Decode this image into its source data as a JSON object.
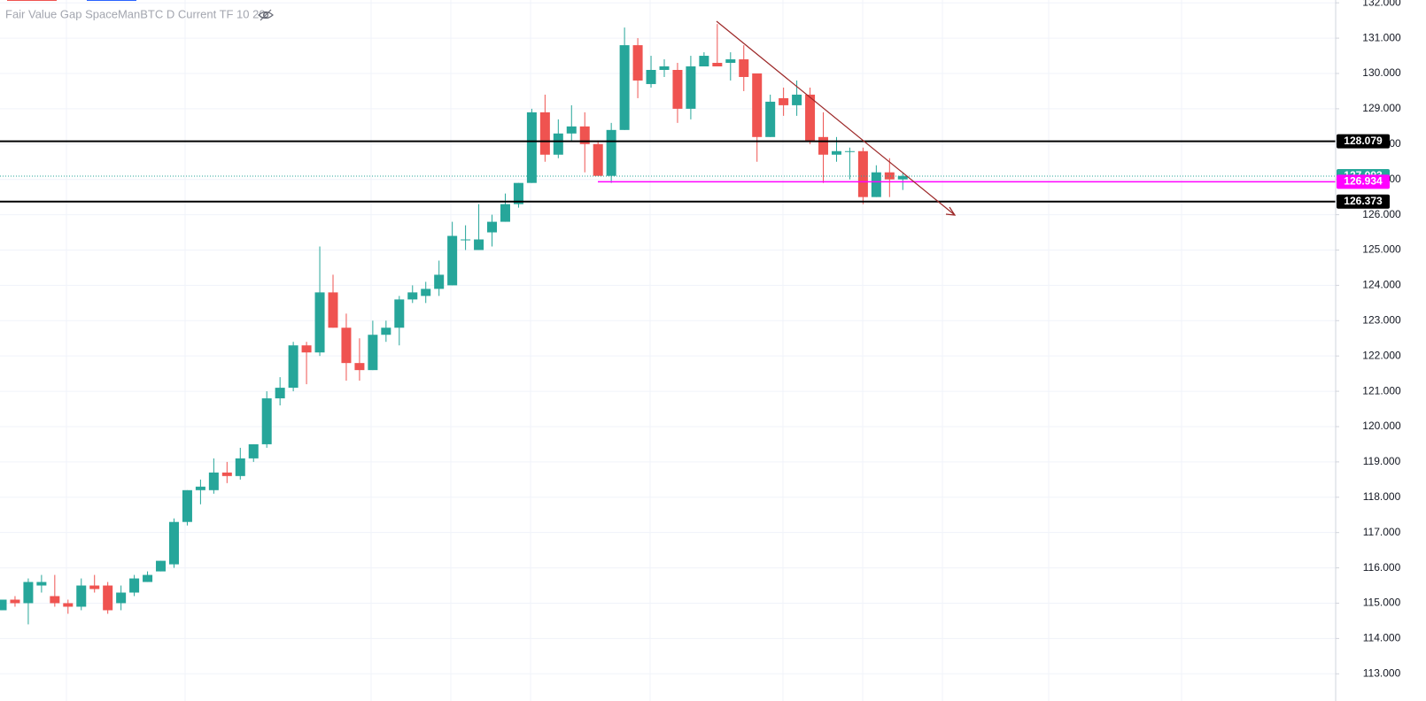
{
  "chart_data": {
    "type": "candlestick",
    "title": "Fair Value Gap SpaceManBTC D Current TF 10 20",
    "up_color": "#26a69a",
    "down_color": "#ef5350",
    "open": [
      114.8,
      115.1,
      115.0,
      115.5,
      115.2,
      115.0,
      114.9,
      115.5,
      115.5,
      115.0,
      115.3,
      115.6,
      115.9,
      116.1,
      117.3,
      118.2,
      118.2,
      118.7,
      118.6,
      119.1,
      119.5,
      120.8,
      121.1,
      122.3,
      122.1,
      123.8,
      122.8,
      121.8,
      121.6,
      122.6,
      122.8,
      123.6,
      123.7,
      123.9,
      124.0,
      125.3,
      125.0,
      125.5,
      125.8,
      126.3,
      126.9,
      128.9,
      127.7,
      128.3,
      128.5,
      128.0,
      127.1,
      128.4,
      130.8,
      129.7,
      130.1,
      130.1,
      129.0,
      130.2,
      130.3,
      130.3,
      130.4,
      130.0,
      128.2,
      129.3,
      129.1,
      129.4,
      128.2,
      127.7,
      127.8,
      127.8,
      126.5,
      127.2,
      127.0
    ],
    "high": [
      115.1,
      115.2,
      115.7,
      115.8,
      115.8,
      115.1,
      115.7,
      115.8,
      115.6,
      115.5,
      115.8,
      115.9,
      116.2,
      117.4,
      118.2,
      118.5,
      119.1,
      119.0,
      119.4,
      119.5,
      121.0,
      121.4,
      122.4,
      122.4,
      125.1,
      124.3,
      123.2,
      122.5,
      123.0,
      123.0,
      123.7,
      124.0,
      124.1,
      124.7,
      125.8,
      125.7,
      126.3,
      126.0,
      126.6,
      126.9,
      129.0,
      129.4,
      128.7,
      129.1,
      128.9,
      128.1,
      128.6,
      131.3,
      131.0,
      130.5,
      130.4,
      130.3,
      130.5,
      130.6,
      131.4,
      130.6,
      130.8,
      130.0,
      129.4,
      129.6,
      129.8,
      129.6,
      128.9,
      128.2,
      127.9,
      127.9,
      127.4,
      127.6,
      127.2
    ],
    "low": [
      114.8,
      114.9,
      114.4,
      115.3,
      114.9,
      114.7,
      114.8,
      115.3,
      114.7,
      114.8,
      115.2,
      115.6,
      115.9,
      116.0,
      117.2,
      117.8,
      118.1,
      118.4,
      118.5,
      119.0,
      119.4,
      120.6,
      121.0,
      121.2,
      122.0,
      122.8,
      121.3,
      121.3,
      121.6,
      122.4,
      122.3,
      123.5,
      123.5,
      123.7,
      124.0,
      125.0,
      125.0,
      125.1,
      125.8,
      126.2,
      126.9,
      127.5,
      127.6,
      128.1,
      127.2,
      127.1,
      126.9,
      128.4,
      129.3,
      129.6,
      129.9,
      128.6,
      128.7,
      130.2,
      130.2,
      129.8,
      129.5,
      127.5,
      128.2,
      128.8,
      128.8,
      128.0,
      126.9,
      127.5,
      127.0,
      126.3,
      126.5,
      126.5,
      126.7
    ],
    "close": [
      115.1,
      115.0,
      115.6,
      115.6,
      115.0,
      114.9,
      115.5,
      115.4,
      114.8,
      115.3,
      115.7,
      115.8,
      116.2,
      117.3,
      118.2,
      118.3,
      118.7,
      118.6,
      119.1,
      119.5,
      120.8,
      121.1,
      122.3,
      122.1,
      123.8,
      122.8,
      121.8,
      121.6,
      122.6,
      122.8,
      123.6,
      123.8,
      123.9,
      124.3,
      125.4,
      125.3,
      125.3,
      125.8,
      126.3,
      126.9,
      128.9,
      127.7,
      128.3,
      128.5,
      128.0,
      127.1,
      128.4,
      130.8,
      129.8,
      130.1,
      130.2,
      129.0,
      130.2,
      130.5,
      130.2,
      130.4,
      129.9,
      128.2,
      129.2,
      129.1,
      129.4,
      128.1,
      127.7,
      127.8,
      127.8,
      126.5,
      127.2,
      127.0,
      127.1
    ],
    "ylim": [
      112.23,
      132.08
    ],
    "yticks": [
      {
        "value": 132,
        "label": "132.000"
      },
      {
        "value": 131,
        "label": "131.000"
      },
      {
        "value": 130,
        "label": "130.000"
      },
      {
        "value": 129,
        "label": "129.000"
      },
      {
        "value": 128,
        "label": "128.000"
      },
      {
        "value": 127,
        "label": "127.000"
      },
      {
        "value": 126,
        "label": "126.000"
      },
      {
        "value": 125,
        "label": "125.000"
      },
      {
        "value": 124,
        "label": "124.000"
      },
      {
        "value": 123,
        "label": "123.000"
      },
      {
        "value": 122,
        "label": "122.000"
      },
      {
        "value": 121,
        "label": "121.000"
      },
      {
        "value": 120,
        "label": "120.000"
      },
      {
        "value": 119,
        "label": "119.000"
      },
      {
        "value": 118,
        "label": "118.000"
      },
      {
        "value": 117,
        "label": "117.000"
      },
      {
        "value": 116,
        "label": "116.000"
      },
      {
        "value": 115,
        "label": "115.000"
      },
      {
        "value": 114,
        "label": "114.000"
      },
      {
        "value": 113,
        "label": "113.000"
      }
    ],
    "grid": true,
    "levels": [
      {
        "price": 128.079,
        "color": "#000000",
        "line": "solid"
      },
      {
        "price": 127.093,
        "color": "#26a69a",
        "line": "dotted"
      },
      {
        "price": 126.934,
        "color": "#ff00ff",
        "line": "partial"
      },
      {
        "price": 126.373,
        "color": "#000000",
        "line": "solid"
      }
    ]
  }
}
